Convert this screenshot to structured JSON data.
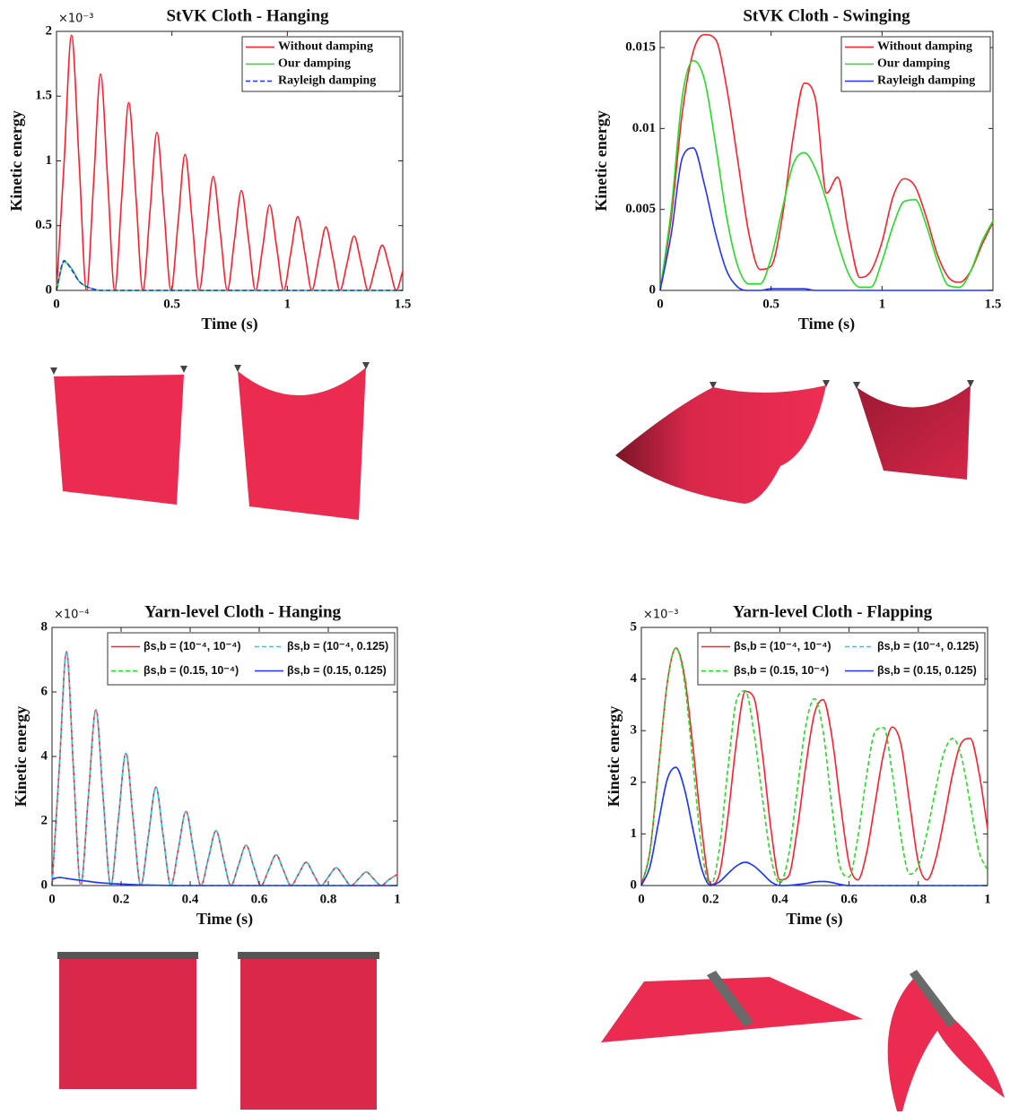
{
  "chart_data": [
    {
      "type": "line",
      "title": "StVK Cloth - Hanging",
      "y_multiplier": "×10⁻³",
      "xlabel": "Time (s)",
      "ylabel": "Kinetic energy",
      "xlim": [
        0,
        1.5
      ],
      "xticks": [
        0,
        0.5,
        1,
        1.5
      ],
      "ylim": [
        0,
        2
      ],
      "yticks": [
        0,
        0.5,
        1,
        1.5,
        2
      ],
      "legend": "upper right",
      "legend_columns": 1,
      "x": [
        0,
        0.033,
        0.065,
        0.098,
        0.13,
        0.161,
        0.191,
        0.222,
        0.252,
        0.283,
        0.313,
        0.344,
        0.374,
        0.405,
        0.435,
        0.466,
        0.496,
        0.527,
        0.557,
        0.588,
        0.618,
        0.649,
        0.679,
        0.71,
        0.74,
        0.771,
        0.801,
        0.832,
        0.862,
        0.893,
        0.923,
        0.954,
        0.984,
        1.015,
        1.045,
        1.076,
        1.106,
        1.137,
        1.167,
        1.198,
        1.228,
        1.259,
        1.289,
        1.32,
        1.35,
        1.381,
        1.411,
        1.442,
        1.472,
        1.5
      ],
      "series": [
        {
          "name": "Without damping",
          "color": "#ff1f2a",
          "dashed": false,
          "values": [
            0,
            0.99,
            1.97,
            0.99,
            0,
            0.84,
            1.67,
            0.84,
            0,
            0.73,
            1.45,
            0.73,
            0,
            0.61,
            1.22,
            0.61,
            0,
            0.53,
            1.05,
            0.53,
            0,
            0.44,
            0.88,
            0.44,
            0,
            0.39,
            0.77,
            0.39,
            0,
            0.33,
            0.66,
            0.33,
            0,
            0.29,
            0.57,
            0.29,
            0,
            0.25,
            0.49,
            0.25,
            0,
            0.21,
            0.42,
            0.21,
            0,
            0.18,
            0.35,
            0.18,
            0,
            0.15
          ]
        },
        {
          "name": "Our damping",
          "color": "#22dd22",
          "dashed": false,
          "values": [
            0,
            0.22,
            0.17,
            0.07,
            0.03,
            0.01,
            0,
            0,
            0,
            0,
            0,
            0,
            0,
            0,
            0,
            0,
            0,
            0,
            0,
            0,
            0,
            0,
            0,
            0,
            0,
            0,
            0,
            0,
            0,
            0,
            0,
            0,
            0,
            0,
            0,
            0,
            0,
            0,
            0,
            0,
            0,
            0,
            0,
            0,
            0,
            0,
            0,
            0,
            0,
            0
          ]
        },
        {
          "name": "Rayleigh damping",
          "color": "#2233ff",
          "dashed": true,
          "values": [
            0,
            0.23,
            0.16,
            0.07,
            0.03,
            0.01,
            0,
            0,
            0,
            0,
            0,
            0,
            0,
            0,
            0,
            0,
            0,
            0,
            0,
            0,
            0,
            0,
            0,
            0,
            0,
            0,
            0,
            0,
            0,
            0,
            0,
            0,
            0,
            0,
            0,
            0,
            0,
            0,
            0,
            0,
            0,
            0,
            0,
            0,
            0,
            0,
            0,
            0,
            0,
            0
          ]
        }
      ]
    },
    {
      "type": "line",
      "title": "StVK Cloth - Swinging",
      "xlabel": "Time (s)",
      "ylabel": "Kinetic energy",
      "xlim": [
        0,
        1.5
      ],
      "xticks": [
        0,
        0.5,
        1,
        1.5
      ],
      "ylim": [
        0,
        0.016
      ],
      "yticks": [
        0,
        0.005,
        0.01,
        0.015
      ],
      "legend": "upper right",
      "legend_columns": 1,
      "x": [
        0,
        0.05,
        0.1,
        0.15,
        0.2,
        0.25,
        0.3,
        0.35,
        0.4,
        0.45,
        0.5,
        0.55,
        0.6,
        0.65,
        0.7,
        0.75,
        0.8,
        0.85,
        0.9,
        0.95,
        1,
        1.05,
        1.1,
        1.15,
        1.2,
        1.25,
        1.3,
        1.35,
        1.4,
        1.45,
        1.5
      ],
      "series": [
        {
          "name": "Without damping",
          "color": "#ff1f2a",
          "dashed": false,
          "values": [
            0,
            0.0045,
            0.011,
            0.0148,
            0.0158,
            0.0155,
            0.0125,
            0.008,
            0.0035,
            0.0013,
            0.0015,
            0.0045,
            0.0095,
            0.0128,
            0.0118,
            0.006,
            0.007,
            0.0035,
            0.0008,
            0.0012,
            0.003,
            0.0058,
            0.0069,
            0.0064,
            0.0045,
            0.0022,
            0.0008,
            0.0005,
            0.0012,
            0.0028,
            0.0042
          ]
        },
        {
          "name": "Our damping",
          "color": "#22dd22",
          "dashed": false,
          "values": [
            0,
            0.005,
            0.012,
            0.0142,
            0.013,
            0.009,
            0.0045,
            0.0015,
            0.0004,
            0.0004,
            0.002,
            0.005,
            0.0078,
            0.0085,
            0.0075,
            0.0055,
            0.003,
            0.001,
            0.0002,
            0.0002,
            0.0018,
            0.004,
            0.0055,
            0.0056,
            0.004,
            0.0018,
            0.0003,
            0.0002,
            0.0012,
            0.003,
            0.0043
          ]
        },
        {
          "name": "Rayleigh damping",
          "color": "#2233ff",
          "dashed": false,
          "values": [
            0,
            0.0035,
            0.0082,
            0.0088,
            0.0065,
            0.0035,
            0.0012,
            0.0002,
            0,
            0,
            0.0001,
            0.0001,
            0.0001,
            0.0001,
            0,
            0,
            0,
            0,
            0,
            0,
            0,
            0,
            0,
            0,
            0,
            0,
            0,
            0,
            0,
            0,
            0
          ]
        }
      ]
    },
    {
      "type": "line",
      "title": "Yarn-level Cloth - Hanging",
      "y_multiplier": "×10⁻⁴",
      "xlabel": "Time (s)",
      "ylabel": "Kinetic energy",
      "xlim": [
        0,
        1
      ],
      "xticks": [
        0,
        0.2,
        0.4,
        0.6,
        0.8,
        1
      ],
      "ylim": [
        0,
        8
      ],
      "yticks": [
        0,
        2,
        4,
        6,
        8
      ],
      "legend": "upper right",
      "legend_columns": 2,
      "x": [
        0,
        0.021,
        0.042,
        0.062,
        0.083,
        0.105,
        0.127,
        0.148,
        0.17,
        0.192,
        0.214,
        0.235,
        0.257,
        0.279,
        0.301,
        0.322,
        0.344,
        0.366,
        0.388,
        0.409,
        0.431,
        0.453,
        0.475,
        0.496,
        0.518,
        0.54,
        0.562,
        0.583,
        0.605,
        0.627,
        0.649,
        0.67,
        0.692,
        0.714,
        0.736,
        0.757,
        0.779,
        0.801,
        0.823,
        0.844,
        0.866,
        0.888,
        0.91,
        0.931,
        0.953,
        0.975,
        1
      ],
      "series": [
        {
          "name": "βs,b = (10⁻⁴, 10⁻⁴)",
          "color": "#ff1f2a",
          "dashed": false,
          "values": [
            0,
            3.63,
            7.25,
            3.63,
            0,
            2.73,
            5.45,
            2.73,
            0,
            2.05,
            4.1,
            2.05,
            0,
            1.53,
            3.05,
            1.53,
            0,
            1.15,
            2.3,
            1.15,
            0,
            0.85,
            1.7,
            0.85,
            0,
            0.63,
            1.25,
            0.63,
            0,
            0.48,
            0.95,
            0.48,
            0,
            0.36,
            0.72,
            0.36,
            0,
            0.28,
            0.55,
            0.28,
            0,
            0.21,
            0.42,
            0.21,
            0,
            0.18,
            0.35
          ]
        },
        {
          "name": "βs,b = (10⁻⁴, 0.125)",
          "color": "#22ccee",
          "dashed": true,
          "values": [
            0,
            3.63,
            7.25,
            3.63,
            0,
            2.73,
            5.45,
            2.73,
            0,
            2.05,
            4.1,
            2.05,
            0,
            1.53,
            3.05,
            1.53,
            0,
            1.15,
            2.3,
            1.15,
            0,
            0.85,
            1.7,
            0.85,
            0,
            0.63,
            1.25,
            0.63,
            0,
            0.48,
            0.95,
            0.48,
            0,
            0.36,
            0.72,
            0.36,
            0,
            0.28,
            0.55,
            0.28,
            0,
            0.21,
            0.42,
            0.21,
            0,
            0.18,
            0.35
          ]
        },
        {
          "name": "βs,b = (0.15, 10⁻⁴)",
          "color": "#22dd22",
          "dashed": true,
          "values": [
            0.2,
            0.25,
            0.22,
            0.19,
            0.16,
            0.13,
            0.1,
            0.08,
            0.06,
            0.05,
            0.04,
            0.03,
            0.02,
            0.015,
            0.01,
            0.005,
            0.003,
            0,
            0,
            0,
            0,
            0,
            0,
            0,
            0,
            0,
            0,
            0,
            0,
            0,
            0,
            0,
            0,
            0,
            0,
            0,
            0,
            0,
            0,
            0,
            0,
            0,
            0,
            0,
            0,
            0,
            0
          ]
        },
        {
          "name": "βs,b = (0.15, 0.125)",
          "color": "#2233ff",
          "dashed": false,
          "values": [
            0.2,
            0.25,
            0.22,
            0.19,
            0.16,
            0.13,
            0.1,
            0.08,
            0.06,
            0.05,
            0.04,
            0.03,
            0.02,
            0.015,
            0.01,
            0.005,
            0.003,
            0,
            0,
            0,
            0,
            0,
            0,
            0,
            0,
            0,
            0,
            0,
            0,
            0,
            0,
            0,
            0,
            0,
            0,
            0,
            0,
            0,
            0,
            0,
            0,
            0,
            0,
            0,
            0,
            0,
            0
          ]
        }
      ]
    },
    {
      "type": "line",
      "title": "Yarn-level Cloth - Flapping",
      "y_multiplier": "×10⁻³",
      "xlabel": "Time (s)",
      "ylabel": "Kinetic energy",
      "xlim": [
        0,
        1
      ],
      "xticks": [
        0,
        0.2,
        0.4,
        0.6,
        0.8,
        1
      ],
      "ylim": [
        0,
        5
      ],
      "yticks": [
        0,
        1,
        2,
        3,
        4,
        5
      ],
      "legend": "upper right",
      "legend_columns": 2,
      "x": [
        0,
        0.025,
        0.05,
        0.075,
        0.1,
        0.125,
        0.15,
        0.175,
        0.2,
        0.225,
        0.25,
        0.275,
        0.3,
        0.325,
        0.35,
        0.375,
        0.4,
        0.425,
        0.45,
        0.475,
        0.5,
        0.525,
        0.55,
        0.575,
        0.6,
        0.625,
        0.65,
        0.675,
        0.7,
        0.725,
        0.75,
        0.775,
        0.8,
        0.825,
        0.85,
        0.875,
        0.9,
        0.925,
        0.95,
        0.975,
        1
      ],
      "series": [
        {
          "name": "βs,b = (10⁻⁴, 10⁻⁴)",
          "color": "#ff1f2a",
          "dashed": false,
          "values": [
            0,
            0.67,
            2.3,
            3.93,
            4.6,
            4.04,
            2.63,
            1.05,
            0.02,
            0.21,
            1.33,
            2.8,
            3.76,
            3.64,
            2.53,
            1.06,
            0.11,
            0.18,
            1.07,
            2.32,
            3.33,
            3.6,
            2.9,
            1.59,
            0.43,
            0.11,
            0.61,
            1.59,
            2.57,
            3.07,
            2.73,
            1.59,
            0.45,
            0.11,
            0.51,
            1.31,
            2.19,
            2.77,
            2.85,
            2.2,
            1.1
          ]
        },
        {
          "name": "βs,b = (10⁻⁴, 0.125)",
          "color": "#22ccee",
          "dashed": true,
          "values": [
            0,
            0.37,
            1.24,
            2.06,
            2.29,
            1.86,
            1.06,
            0.31,
            0,
            0.07,
            0.23,
            0.38,
            0.46,
            0.38,
            0.23,
            0.07,
            0,
            0.004,
            0.02,
            0.04,
            0.07,
            0.08,
            0.06,
            0.02,
            0,
            0,
            0,
            0,
            0,
            0,
            0,
            0,
            0,
            0,
            0,
            0,
            0,
            0,
            0,
            0,
            0
          ]
        },
        {
          "name": "βs,b = (0.15, 10⁻⁴)",
          "color": "#22dd22",
          "dashed": true,
          "values": [
            0,
            0.67,
            2.3,
            3.93,
            4.6,
            3.93,
            2.3,
            0.67,
            0,
            0.69,
            2.26,
            3.59,
            3.77,
            2.98,
            1.68,
            0.52,
            0.05,
            0.57,
            1.84,
            3.1,
            3.62,
            2.99,
            1.55,
            0.34,
            0.17,
            0.92,
            2.1,
            2.98,
            3.06,
            2.17,
            0.94,
            0.22,
            0.38,
            1.02,
            1.87,
            2.59,
            2.85,
            2.48,
            1.58,
            0.67,
            0.3
          ]
        },
        {
          "name": "βs,b = (0.15, 0.125)",
          "color": "#2233ff",
          "dashed": false,
          "values": [
            0,
            0.37,
            1.24,
            2.06,
            2.29,
            1.86,
            1.06,
            0.31,
            0,
            0.07,
            0.23,
            0.38,
            0.45,
            0.38,
            0.23,
            0.07,
            0,
            0.004,
            0.02,
            0.04,
            0.07,
            0.08,
            0.06,
            0.02,
            0,
            0,
            0,
            0,
            0,
            0,
            0,
            0,
            0,
            0,
            0,
            0,
            0,
            0,
            0,
            0,
            0
          ]
        }
      ]
    }
  ]
}
